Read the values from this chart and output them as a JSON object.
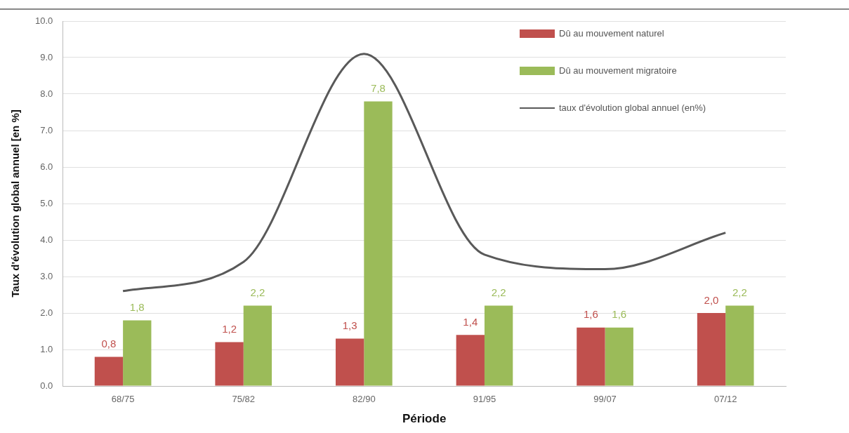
{
  "chart_data": {
    "type": "bar",
    "xlabel": "Période",
    "ylabel": "Taux d'évolution global annuel [en %]",
    "categories": [
      "68/75",
      "75/82",
      "82/90",
      "91/95",
      "99/07",
      "07/12"
    ],
    "series": [
      {
        "name": "Dû au mouvement naturel",
        "color": "#c0504d",
        "values": [
          0.8,
          1.2,
          1.3,
          1.4,
          1.6,
          2.0
        ],
        "value_labels": [
          "0,8",
          "1,2",
          "1,3",
          "1,4",
          "1,6",
          "2,0"
        ]
      },
      {
        "name": "Dû au mouvement migratoire",
        "color": "#9bbb59",
        "values": [
          1.8,
          2.2,
          7.8,
          2.2,
          1.6,
          2.2
        ],
        "value_labels": [
          "1,8",
          "2,2",
          "7,8",
          "2,2",
          "1,6",
          "2,2"
        ]
      },
      {
        "name": "taux d'évolution global annuel (en%)",
        "type": "line",
        "color": "#595959",
        "values": [
          2.6,
          3.4,
          9.1,
          3.6,
          3.2,
          4.2
        ],
        "marker": "none"
      }
    ],
    "ylim": [
      0,
      10
    ],
    "yticks": [
      {
        "value": 0,
        "label": "0.0"
      },
      {
        "value": 1,
        "label": "1.0"
      },
      {
        "value": 2,
        "label": "2.0"
      },
      {
        "value": 3,
        "label": "3.0"
      },
      {
        "value": 4,
        "label": "4.0"
      },
      {
        "value": 5,
        "label": "5.0"
      },
      {
        "value": 6,
        "label": "6.0"
      },
      {
        "value": 7,
        "label": "7.0"
      },
      {
        "value": 8,
        "label": "8.0"
      },
      {
        "value": 9,
        "label": "9.0"
      },
      {
        "value": 10,
        "label": "10.0"
      }
    ],
    "grid": "y",
    "legend": "top right"
  }
}
